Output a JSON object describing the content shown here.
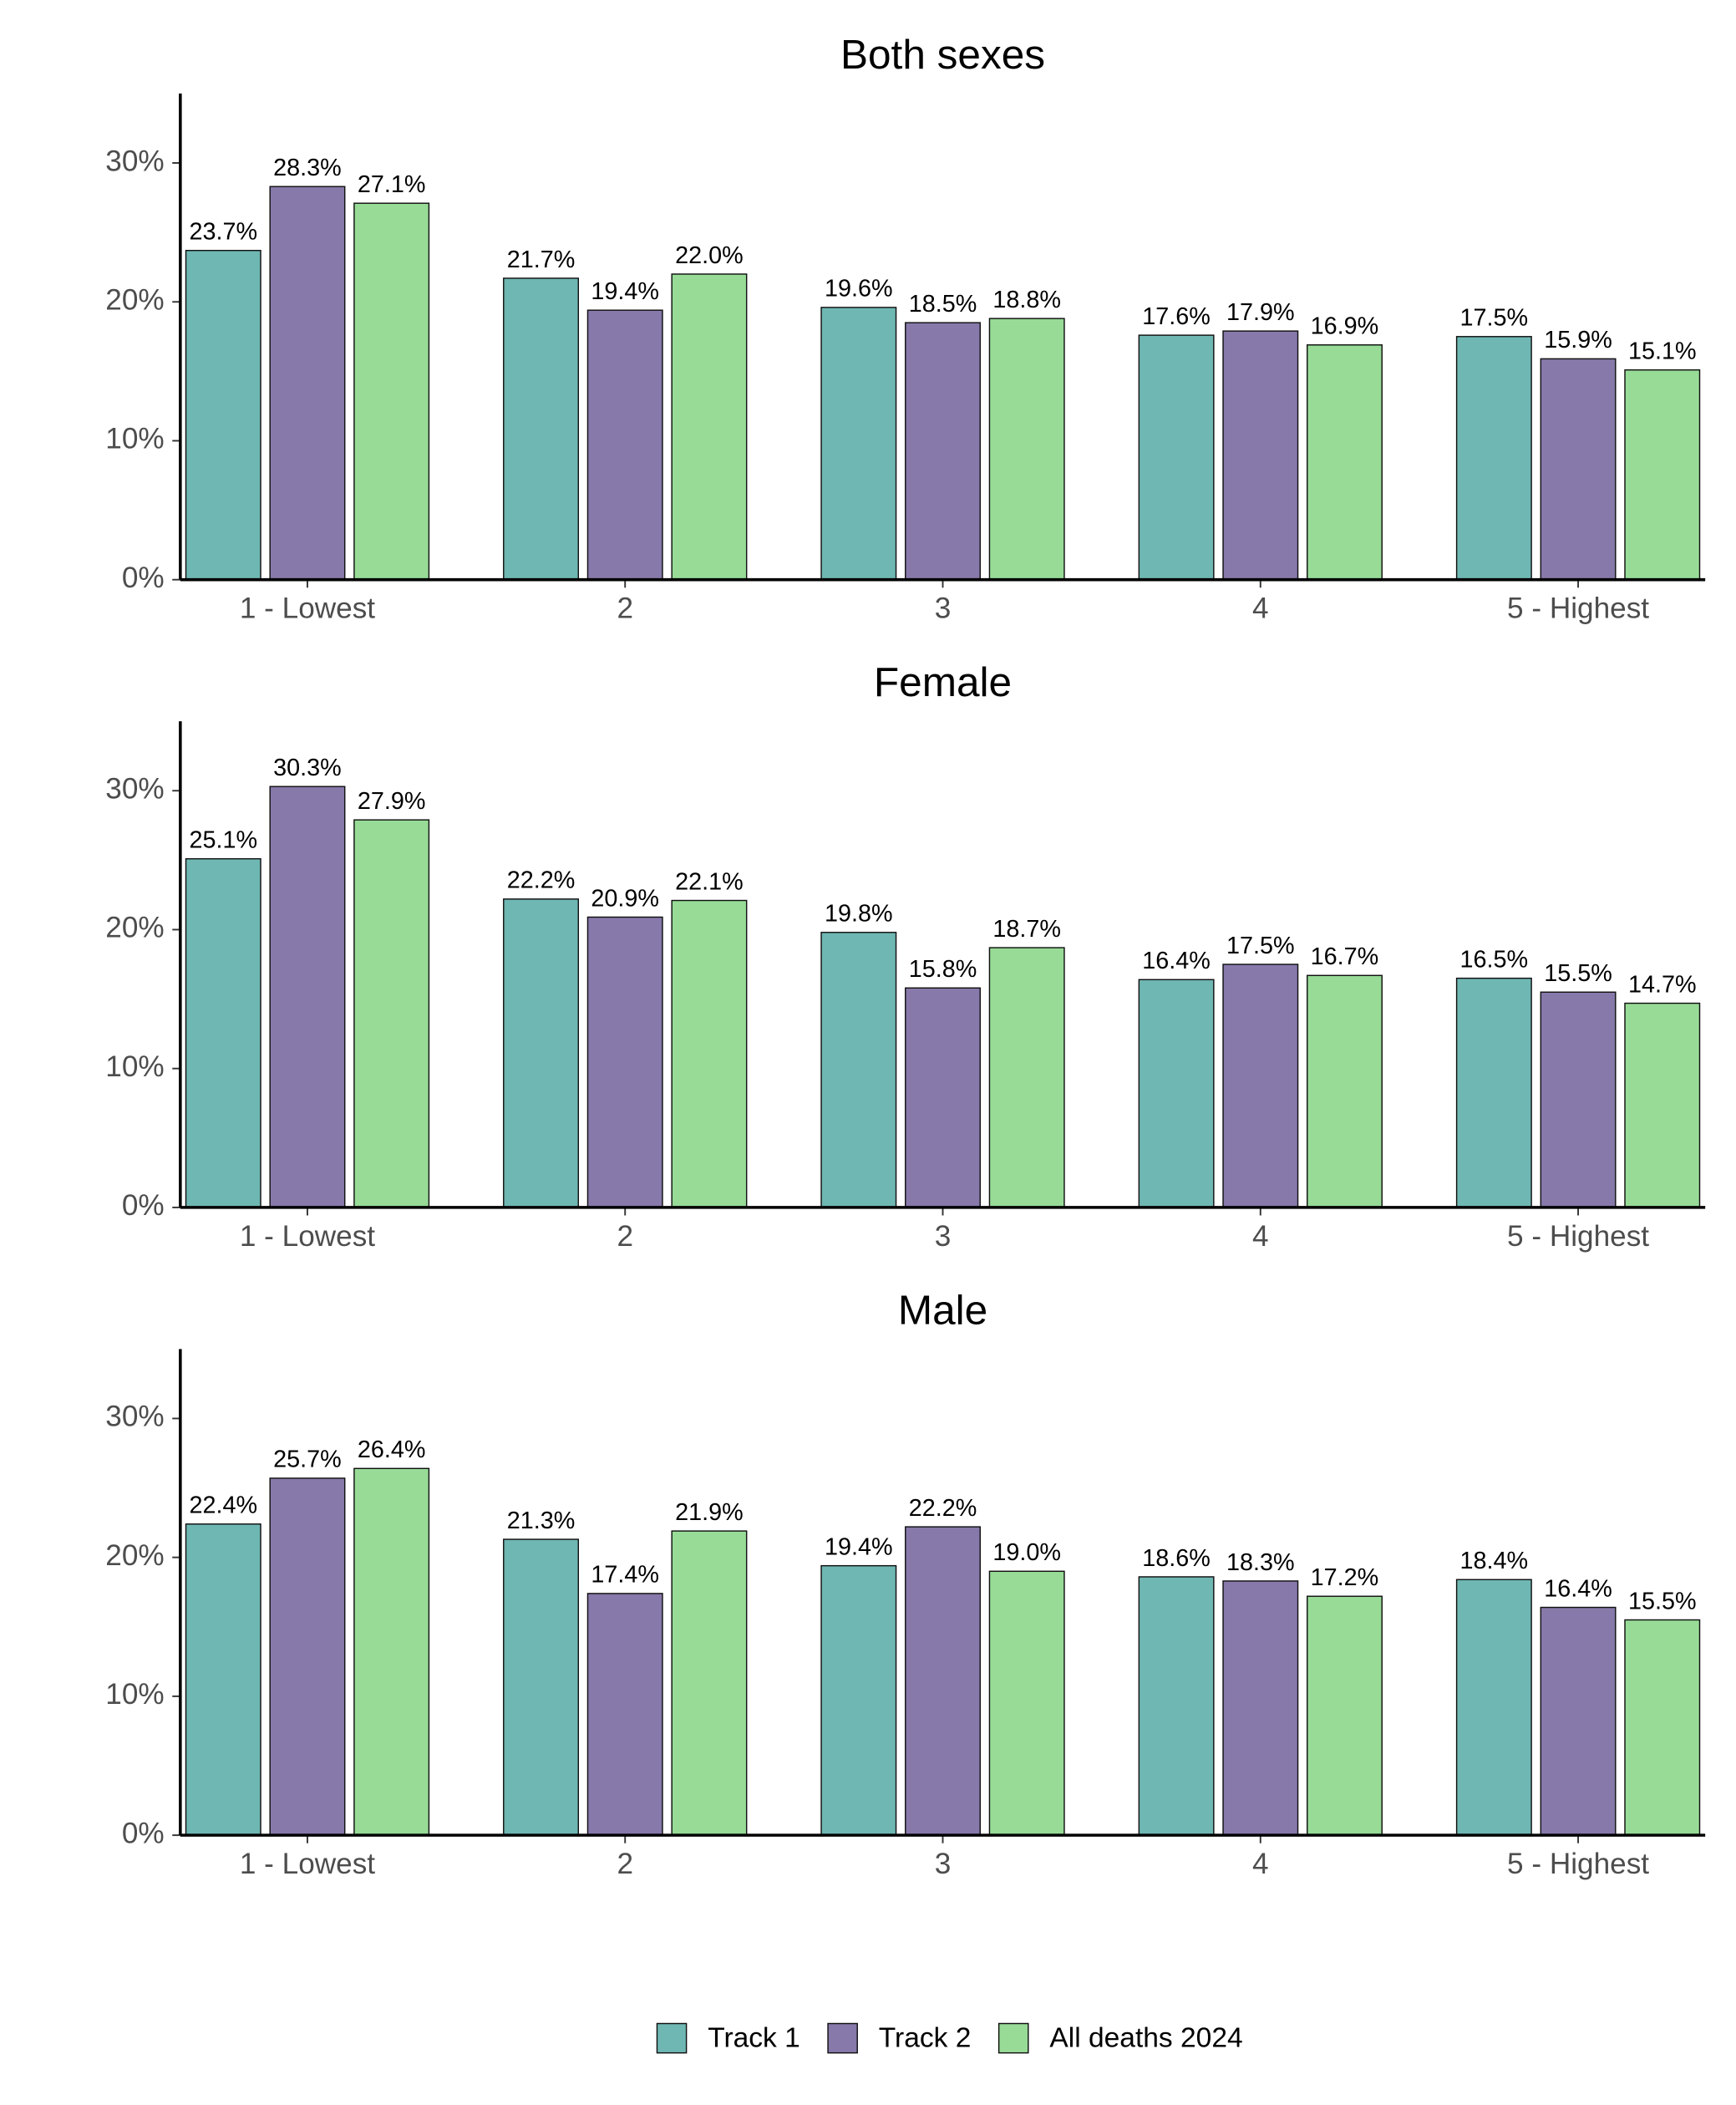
{
  "chart_data": [
    {
      "type": "bar",
      "title": "Both sexes",
      "categories": [
        "1 - Lowest",
        "2",
        "3",
        "4",
        "5 - Highest"
      ],
      "series": [
        {
          "name": "Track 1",
          "color": "#6fb7b3",
          "values": [
            23.7,
            21.7,
            19.6,
            17.6,
            17.5
          ],
          "value_labels": [
            "23.7%",
            "21.7%",
            "19.6%",
            "17.6%",
            "17.5%"
          ]
        },
        {
          "name": "Track 2",
          "color": "#8779aa",
          "values": [
            28.3,
            19.4,
            18.5,
            17.9,
            15.9
          ],
          "value_labels": [
            "28.3%",
            "19.4%",
            "18.5%",
            "17.9%",
            "15.9%"
          ]
        },
        {
          "name": "All deaths 2024",
          "color": "#97db97",
          "values": [
            27.1,
            22.0,
            18.8,
            16.9,
            15.1
          ],
          "value_labels": [
            "27.1%",
            "22.0%",
            "18.8%",
            "16.9%",
            "15.1%"
          ]
        }
      ],
      "ylim": [
        0,
        35
      ],
      "yticks": [
        {
          "value": 0,
          "label": "0%"
        },
        {
          "value": 10,
          "label": "10%"
        },
        {
          "value": 20,
          "label": "20%"
        },
        {
          "value": 30,
          "label": "30%"
        }
      ],
      "legend": "bottom"
    },
    {
      "type": "bar",
      "title": "Female",
      "categories": [
        "1 - Lowest",
        "2",
        "3",
        "4",
        "5 - Highest"
      ],
      "series": [
        {
          "name": "Track 1",
          "color": "#6fb7b3",
          "values": [
            25.1,
            22.2,
            19.8,
            16.4,
            16.5
          ],
          "value_labels": [
            "25.1%",
            "22.2%",
            "19.8%",
            "16.4%",
            "16.5%"
          ]
        },
        {
          "name": "Track 2",
          "color": "#8779aa",
          "values": [
            30.3,
            20.9,
            15.8,
            17.5,
            15.5
          ],
          "value_labels": [
            "30.3%",
            "20.9%",
            "15.8%",
            "17.5%",
            "15.5%"
          ]
        },
        {
          "name": "All deaths 2024",
          "color": "#97db97",
          "values": [
            27.9,
            22.1,
            18.7,
            16.7,
            14.7
          ],
          "value_labels": [
            "27.9%",
            "22.1%",
            "18.7%",
            "16.7%",
            "14.7%"
          ]
        }
      ],
      "ylim": [
        0,
        35
      ],
      "yticks": [
        {
          "value": 0,
          "label": "0%"
        },
        {
          "value": 10,
          "label": "10%"
        },
        {
          "value": 20,
          "label": "20%"
        },
        {
          "value": 30,
          "label": "30%"
        }
      ]
    },
    {
      "type": "bar",
      "title": "Male",
      "categories": [
        "1 - Lowest",
        "2",
        "3",
        "4",
        "5 - Highest"
      ],
      "series": [
        {
          "name": "Track 1",
          "color": "#6fb7b3",
          "values": [
            22.4,
            21.3,
            19.4,
            18.6,
            18.4
          ],
          "value_labels": [
            "22.4%",
            "21.3%",
            "19.4%",
            "18.6%",
            "18.4%"
          ]
        },
        {
          "name": "Track 2",
          "color": "#8779aa",
          "values": [
            25.7,
            17.4,
            22.2,
            18.3,
            16.4
          ],
          "value_labels": [
            "25.7%",
            "17.4%",
            "22.2%",
            "18.3%",
            "16.4%"
          ]
        },
        {
          "name": "All deaths 2024",
          "color": "#97db97",
          "values": [
            26.4,
            21.9,
            19.0,
            17.2,
            15.5
          ],
          "value_labels": [
            "26.4%",
            "21.9%",
            "19.0%",
            "17.2%",
            "15.5%"
          ]
        }
      ],
      "ylim": [
        0,
        35
      ],
      "yticks": [
        {
          "value": 0,
          "label": "0%"
        },
        {
          "value": 10,
          "label": "10%"
        },
        {
          "value": 20,
          "label": "20%"
        },
        {
          "value": 30,
          "label": "30%"
        }
      ]
    }
  ]
}
